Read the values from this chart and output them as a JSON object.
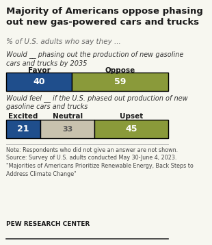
{
  "title": "Majority of Americans oppose phasing\nout new gas-powered cars and trucks",
  "subtitle": "% of U.S. adults who say they ...",
  "chart1_label": "Would __ phasing out the production of new gasoline\ncars and trucks by 2035",
  "chart1_categories": [
    "Favor",
    "Oppose"
  ],
  "chart1_values": [
    40,
    59
  ],
  "chart1_colors": [
    "#1f4e8c",
    "#8a9a3a"
  ],
  "chart2_label": "Would feel __ if the U.S. phased out production of new\ngasoline cars and trucks",
  "chart2_categories": [
    "Excited",
    "Neutral",
    "Upset"
  ],
  "chart2_values": [
    21,
    33,
    45
  ],
  "chart2_colors": [
    "#1f4e8c",
    "#c8c2ae",
    "#8a9a3a"
  ],
  "note": "Note: Respondents who did not give an answer are not shown.\nSource: Survey of U.S. adults conducted May 30-June 4, 2023.\n\"Majorities of Americans Prioritize Renewable Energy, Back Steps to\nAddress Climate Change\"",
  "source_label": "PEW RESEARCH CENTER",
  "bg_color": "#f7f7f0",
  "text_color_white": "#ffffff",
  "text_color_dark": "#333333"
}
